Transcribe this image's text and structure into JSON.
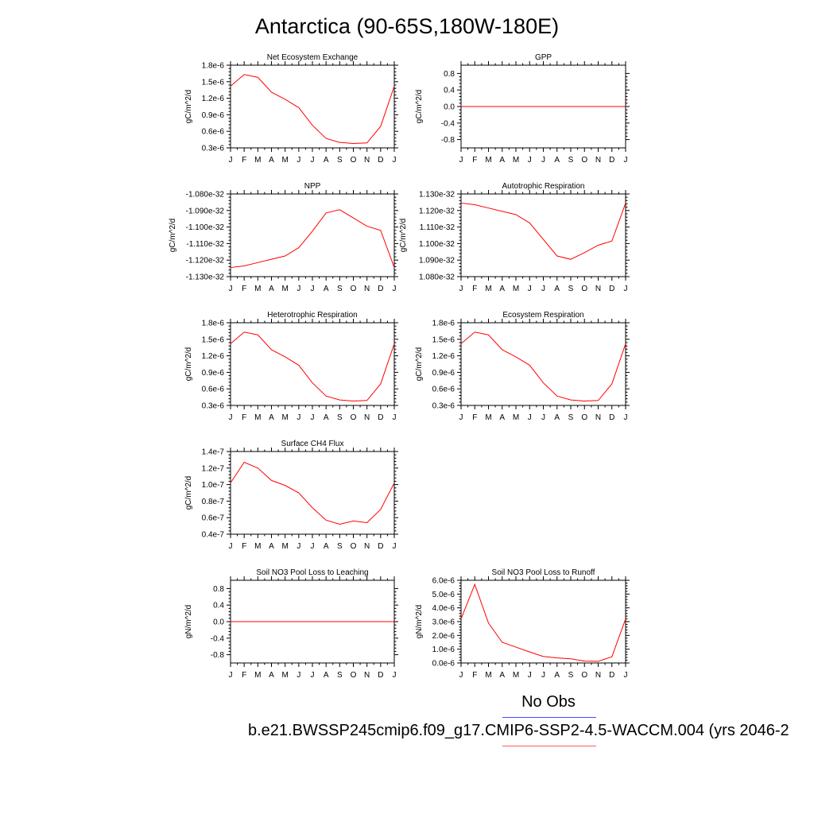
{
  "title": "Antarctica (90-65S,180W-180E)",
  "legend": {
    "obs_label": "No Obs",
    "obs_color": "#4a4aff",
    "case_label": "b.e21.BWSSP245cmip6.f09_g17.CMIP6-SSP2-4.5-WACCM.004 (yrs 2046-2",
    "case_color": "#ff0000"
  },
  "months": [
    "J",
    "F",
    "M",
    "A",
    "M",
    "J",
    "J",
    "A",
    "S",
    "O",
    "N",
    "D",
    "J"
  ],
  "chart_data": [
    {
      "type": "line",
      "title": "Net Ecosystem Exchange",
      "ylabel": "gC/m^2/d",
      "ylim": [
        3e-07,
        1.8e-06
      ],
      "yticks": [
        3e-07,
        6e-07,
        9e-07,
        1.2e-06,
        1.5e-06,
        1.8e-06
      ],
      "yticklabels": [
        "0.3e-6",
        "0.6e-6",
        "0.9e-6",
        "1.2e-6",
        "1.5e-6",
        "1.8e-6"
      ],
      "values": [
        1.42e-06,
        1.63e-06,
        1.58e-06,
        1.31e-06,
        1.18e-06,
        1.03e-06,
        7.1e-07,
        4.7e-07,
        4e-07,
        3.8e-07,
        3.9e-07,
        6.9e-07,
        1.42e-06
      ]
    },
    {
      "type": "line",
      "title": "GPP",
      "ylabel": "gC/m^2/d",
      "ylim": [
        -1.0,
        1.0
      ],
      "yticks": [
        -0.8,
        -0.4,
        0.0,
        0.4,
        0.8
      ],
      "yticklabels": [
        "-0.8",
        "-0.4",
        "0.0",
        "0.4",
        "0.8"
      ],
      "values": [
        0,
        0,
        0,
        0,
        0,
        0,
        0,
        0,
        0,
        0,
        0,
        0,
        0
      ]
    },
    {
      "type": "line",
      "title": "NPP",
      "ylabel": "gC/m^2/d",
      "ylim": [
        -1.13e-32,
        -1.08e-32
      ],
      "yticks": [
        -1.13e-32,
        -1.12e-32,
        -1.11e-32,
        -1.1e-32,
        -1.09e-32,
        -1.08e-32
      ],
      "yticklabels": [
        "-1.130e-32",
        "-1.120e-32",
        "-1.110e-32",
        "-1.100e-32",
        "-1.090e-32",
        "-1.080e-32"
      ],
      "values": [
        -1.1245e-32,
        -1.1235e-32,
        -1.1215e-32,
        -1.1195e-32,
        -1.1175e-32,
        -1.1125e-32,
        -1.1025e-32,
        -1.0915e-32,
        -1.0895e-32,
        -1.0945e-32,
        -1.0995e-32,
        -1.102e-32,
        -1.1245e-32
      ]
    },
    {
      "type": "line",
      "title": "Autotrophic Respiration",
      "ylabel": "gC/m^2/d",
      "ylim": [
        1.08e-32,
        1.13e-32
      ],
      "yticks": [
        1.08e-32,
        1.09e-32,
        1.1e-32,
        1.11e-32,
        1.12e-32,
        1.13e-32
      ],
      "yticklabels": [
        "1.080e-32",
        "1.090e-32",
        "1.100e-32",
        "1.110e-32",
        "1.120e-32",
        "1.130e-32"
      ],
      "values": [
        1.1245e-32,
        1.1235e-32,
        1.1215e-32,
        1.1195e-32,
        1.1175e-32,
        1.1125e-32,
        1.1025e-32,
        1.0925e-32,
        1.0905e-32,
        1.0945e-32,
        1.099e-32,
        1.1015e-32,
        1.1245e-32
      ]
    },
    {
      "type": "line",
      "title": "Heterotrophic Respiration",
      "ylabel": "gC/m^2/d",
      "ylim": [
        3e-07,
        1.8e-06
      ],
      "yticks": [
        3e-07,
        6e-07,
        9e-07,
        1.2e-06,
        1.5e-06,
        1.8e-06
      ],
      "yticklabels": [
        "0.3e-6",
        "0.6e-6",
        "0.9e-6",
        "1.2e-6",
        "1.5e-6",
        "1.8e-6"
      ],
      "values": [
        1.42e-06,
        1.63e-06,
        1.58e-06,
        1.31e-06,
        1.18e-06,
        1.03e-06,
        7.1e-07,
        4.7e-07,
        4e-07,
        3.8e-07,
        3.9e-07,
        6.9e-07,
        1.42e-06
      ]
    },
    {
      "type": "line",
      "title": "Ecosystem Respiration",
      "ylabel": "gC/m^2/d",
      "ylim": [
        3e-07,
        1.8e-06
      ],
      "yticks": [
        3e-07,
        6e-07,
        9e-07,
        1.2e-06,
        1.5e-06,
        1.8e-06
      ],
      "yticklabels": [
        "0.3e-6",
        "0.6e-6",
        "0.9e-6",
        "1.2e-6",
        "1.5e-6",
        "1.8e-6"
      ],
      "values": [
        1.42e-06,
        1.63e-06,
        1.58e-06,
        1.31e-06,
        1.18e-06,
        1.03e-06,
        7.1e-07,
        4.7e-07,
        4e-07,
        3.8e-07,
        3.9e-07,
        6.9e-07,
        1.42e-06
      ]
    },
    {
      "type": "line",
      "title": "Surface CH4 Flux",
      "ylabel": "gC/m^2/d",
      "ylim": [
        4e-08,
        1.4e-07
      ],
      "yticks": [
        4e-08,
        6e-08,
        8e-08,
        1e-07,
        1.2e-07,
        1.4e-07
      ],
      "yticklabels": [
        "0.4e-7",
        "0.6e-7",
        "0.8e-7",
        "1.0e-7",
        "1.2e-7",
        "1.4e-7"
      ],
      "values": [
        1.02e-07,
        1.27e-07,
        1.2e-07,
        1.05e-07,
        9.9e-08,
        9e-08,
        7.2e-08,
        5.7e-08,
        5.2e-08,
        5.6e-08,
        5.4e-08,
        7e-08,
        1.02e-07
      ]
    },
    {
      "type": "line",
      "title": "Soil NO3 Pool Loss to Leaching",
      "ylabel": "gN/m^2/d",
      "ylim": [
        -1.0,
        1.0
      ],
      "yticks": [
        -0.8,
        -0.4,
        0.0,
        0.4,
        0.8
      ],
      "yticklabels": [
        "-0.8",
        "-0.4",
        "0.0",
        "0.4",
        "0.8"
      ],
      "values": [
        0,
        0,
        0,
        0,
        0,
        0,
        0,
        0,
        0,
        0,
        0,
        0,
        0
      ]
    },
    {
      "type": "line",
      "title": "Soil NO3 Pool Loss to Runoff",
      "ylabel": "gN/m^2/d",
      "ylim": [
        0,
        6e-06
      ],
      "yticks": [
        0,
        1e-06,
        2e-06,
        3e-06,
        4e-06,
        5e-06,
        6e-06
      ],
      "yticklabels": [
        "0.0e-6",
        "1.0e-6",
        "2.0e-6",
        "3.0e-6",
        "4.0e-6",
        "5.0e-6",
        "6.0e-6"
      ],
      "values": [
        3.2e-06,
        5.7e-06,
        2.9e-06,
        1.5e-06,
        1.15e-06,
        8e-07,
        4.7e-07,
        3.7e-07,
        3e-07,
        1.4e-07,
        1.2e-07,
        4.5e-07,
        3.2e-06
      ]
    }
  ]
}
